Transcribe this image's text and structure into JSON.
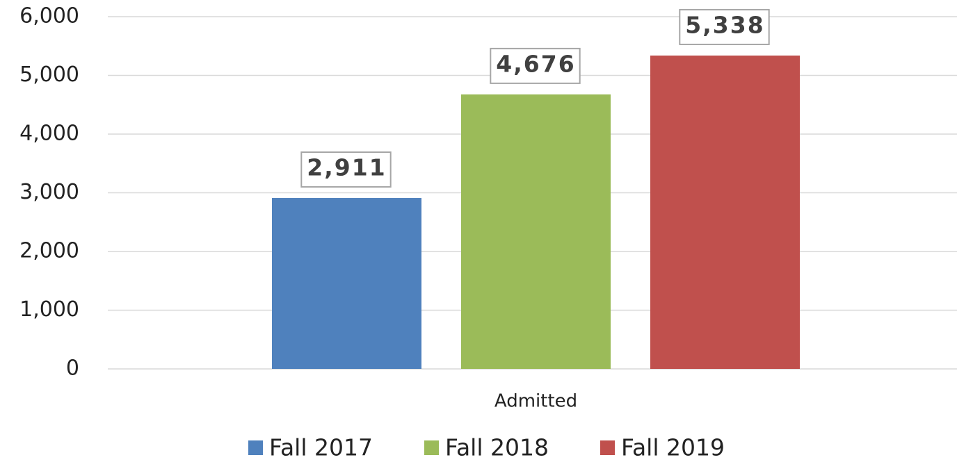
{
  "chart_data": {
    "type": "bar",
    "categories": [
      "Admitted"
    ],
    "series": [
      {
        "name": "Fall 2017",
        "color": "#4f81bd",
        "values": [
          2911
        ],
        "value_labels": [
          "2,911"
        ]
      },
      {
        "name": "Fall 2018",
        "color": "#9bbb59",
        "values": [
          4676
        ],
        "value_labels": [
          "4,676"
        ]
      },
      {
        "name": "Fall 2019",
        "color": "#c0504d",
        "values": [
          5338
        ],
        "value_labels": [
          "5,338"
        ]
      }
    ],
    "ylim": [
      0,
      6000
    ],
    "yticks": [
      0,
      {
        "value": 1000,
        "label": "1,000"
      },
      {
        "value": 2000,
        "label": "2,000"
      },
      {
        "value": 3000,
        "label": "3,000"
      },
      {
        "value": 4000,
        "label": "4,000"
      },
      {
        "value": 5000,
        "label": "5,000"
      },
      {
        "value": 6000,
        "label": "6,000"
      }
    ],
    "grid": true,
    "legend": "bottom"
  }
}
